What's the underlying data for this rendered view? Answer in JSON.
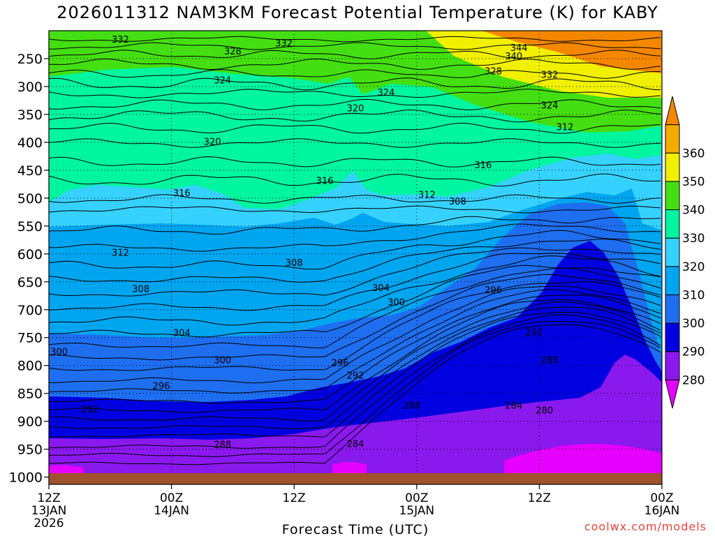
{
  "chart_data": {
    "type": "heatmap",
    "title": "2026011312 NAM3KM Forecast Potential Temperature (K) for KABY",
    "xlabel": "Forecast Time (UTC)",
    "ylabel": "",
    "credit": "coolwx.com/models",
    "x_ticks": [
      {
        "hours": 0,
        "line1": "12Z",
        "line2": "13JAN",
        "line3": "2026"
      },
      {
        "hours": 12,
        "line1": "00Z",
        "line2": "14JAN",
        "line3": ""
      },
      {
        "hours": 24,
        "line1": "12Z",
        "line2": "",
        "line3": ""
      },
      {
        "hours": 36,
        "line1": "00Z",
        "line2": "15JAN",
        "line3": ""
      },
      {
        "hours": 48,
        "line1": "12Z",
        "line2": "",
        "line3": ""
      },
      {
        "hours": 60,
        "line1": "00Z",
        "line2": "16JAN",
        "line3": ""
      }
    ],
    "xlim_hours": [
      0,
      60
    ],
    "y_ticks_hPa": [
      250,
      300,
      350,
      400,
      450,
      500,
      550,
      600,
      650,
      700,
      750,
      800,
      850,
      900,
      950,
      1000
    ],
    "ylim_hPa": [
      200,
      1013
    ],
    "colorbar": {
      "levels": [
        280,
        290,
        300,
        310,
        320,
        330,
        340,
        350,
        360
      ],
      "colors": [
        "#e600ff",
        "#8a19ee",
        "#0000e0",
        "#1e6ef0",
        "#00a5f0",
        "#36d2ff",
        "#00f5a0",
        "#44df12",
        "#f0f000",
        "#f5ab00",
        "#f58700"
      ]
    },
    "contour_labels": [
      {
        "value": "332",
        "hours": 7.0,
        "hPa": 215
      },
      {
        "value": "332",
        "hours": 23.0,
        "hPa": 222
      },
      {
        "value": "328",
        "hours": 18.0,
        "hPa": 236
      },
      {
        "value": "344",
        "hours": 46.0,
        "hPa": 230
      },
      {
        "value": "340",
        "hours": 45.5,
        "hPa": 245
      },
      {
        "value": "328",
        "hours": 43.5,
        "hPa": 272
      },
      {
        "value": "332",
        "hours": 49.0,
        "hPa": 278
      },
      {
        "value": "324",
        "hours": 17.0,
        "hPa": 288
      },
      {
        "value": "324",
        "hours": 33.0,
        "hPa": 310
      },
      {
        "value": "320",
        "hours": 30.0,
        "hPa": 338
      },
      {
        "value": "324",
        "hours": 49.0,
        "hPa": 333
      },
      {
        "value": "312",
        "hours": 50.5,
        "hPa": 372
      },
      {
        "value": "320",
        "hours": 16.0,
        "hPa": 398
      },
      {
        "value": "316",
        "hours": 27.0,
        "hPa": 468
      },
      {
        "value": "316",
        "hours": 42.5,
        "hPa": 440
      },
      {
        "value": "316",
        "hours": 13.0,
        "hPa": 490
      },
      {
        "value": "312",
        "hours": 37.0,
        "hPa": 493
      },
      {
        "value": "308",
        "hours": 40.0,
        "hPa": 505
      },
      {
        "value": "312",
        "hours": 7.0,
        "hPa": 597
      },
      {
        "value": "308",
        "hours": 24.0,
        "hPa": 615
      },
      {
        "value": "308",
        "hours": 9.0,
        "hPa": 662
      },
      {
        "value": "304",
        "hours": 32.5,
        "hPa": 660
      },
      {
        "value": "296",
        "hours": 43.5,
        "hPa": 664
      },
      {
        "value": "300",
        "hours": 34.0,
        "hPa": 686
      },
      {
        "value": "304",
        "hours": 13.0,
        "hPa": 741
      },
      {
        "value": "292",
        "hours": 47.5,
        "hPa": 740
      },
      {
        "value": "300",
        "hours": 1.0,
        "hPa": 775
      },
      {
        "value": "300",
        "hours": 17.0,
        "hPa": 790
      },
      {
        "value": "296",
        "hours": 28.5,
        "hPa": 795
      },
      {
        "value": "288",
        "hours": 49.0,
        "hPa": 790
      },
      {
        "value": "292",
        "hours": 30.0,
        "hPa": 817
      },
      {
        "value": "296",
        "hours": 11.0,
        "hPa": 836
      },
      {
        "value": "288",
        "hours": 35.5,
        "hPa": 871
      },
      {
        "value": "284",
        "hours": 45.5,
        "hPa": 871
      },
      {
        "value": "292",
        "hours": 4.0,
        "hPa": 878
      },
      {
        "value": "280",
        "hours": 48.5,
        "hPa": 880
      },
      {
        "value": "288",
        "hours": 17.0,
        "hPa": 941
      },
      {
        "value": "284",
        "hours": 30.0,
        "hPa": 940
      }
    ]
  }
}
